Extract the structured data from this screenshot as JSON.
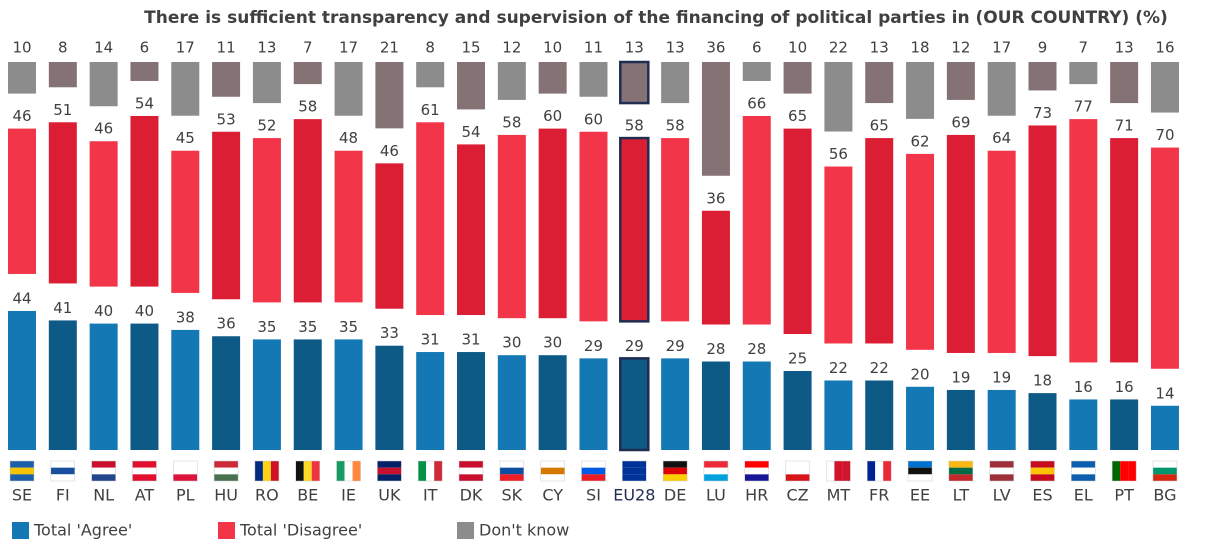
{
  "chart_data": {
    "type": "bar",
    "title": "There is sufficient transparency and supervision of the financing of political parties in (OUR COUNTRY)  (%)",
    "categories": [
      "SE",
      "FI",
      "NL",
      "AT",
      "PL",
      "HU",
      "RO",
      "BE",
      "IE",
      "UK",
      "IT",
      "DK",
      "SK",
      "CY",
      "SI",
      "EU28",
      "DE",
      "LU",
      "HR",
      "CZ",
      "MT",
      "FR",
      "EE",
      "LT",
      "LV",
      "ES",
      "EL",
      "PT",
      "BG"
    ],
    "highlight": "EU28",
    "series": [
      {
        "name": "Total 'Agree'",
        "colors": [
          "#1478b4",
          "#0e5a86"
        ],
        "values": [
          44,
          41,
          40,
          40,
          38,
          36,
          35,
          35,
          35,
          33,
          31,
          31,
          30,
          30,
          29,
          29,
          29,
          28,
          28,
          25,
          22,
          22,
          20,
          19,
          19,
          18,
          16,
          16,
          14
        ]
      },
      {
        "name": "Total 'Disagree'",
        "colors": [
          "#f23549",
          "#dc1e34"
        ],
        "values": [
          46,
          51,
          46,
          54,
          45,
          53,
          52,
          58,
          48,
          46,
          61,
          54,
          58,
          60,
          60,
          58,
          58,
          36,
          66,
          65,
          56,
          65,
          62,
          69,
          64,
          73,
          77,
          71,
          70
        ]
      },
      {
        "name": "Don't know",
        "colors": [
          "#8c8c8c",
          "#857275"
        ],
        "values": [
          10,
          8,
          14,
          6,
          17,
          11,
          13,
          7,
          17,
          21,
          8,
          15,
          12,
          10,
          11,
          13,
          13,
          36,
          6,
          10,
          22,
          13,
          18,
          12,
          17,
          9,
          7,
          13,
          16
        ]
      }
    ]
  }
}
